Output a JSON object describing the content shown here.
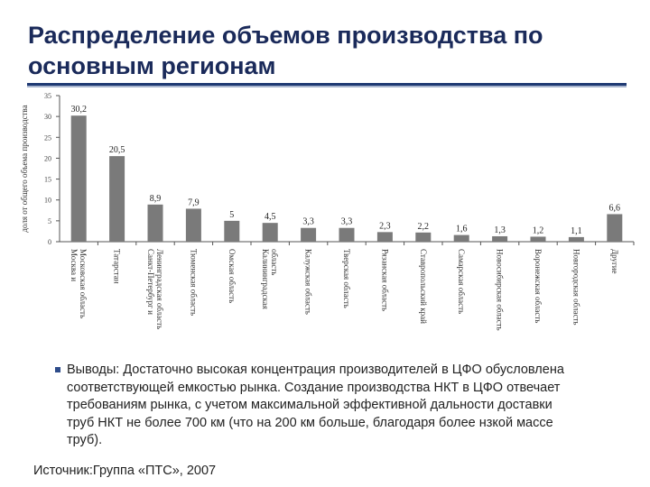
{
  "title": "Распределение объемов производства по основным регионам",
  "chart_data": {
    "type": "bar",
    "ylabel": "доля от общего объема производства",
    "ylim": [
      0,
      35
    ],
    "yticks": [
      0,
      5,
      10,
      15,
      20,
      25,
      30,
      35
    ],
    "categories": [
      "Москва и Московская область",
      "Татарстан",
      "Санкт-Петербург и Ленинградская область",
      "Тюменская область",
      "Омская область",
      "Калининградская область",
      "Калужская область",
      "Тверская область",
      "Рязанская область",
      "Ставропольский край",
      "Самарская область",
      "Новосибирская область",
      "Воронежская область",
      "Новгородская область",
      "Другие"
    ],
    "data_labels": [
      "30,2",
      "20,5",
      "8,9",
      "7,9",
      "5",
      "4,5",
      "3,3",
      "3,3",
      "2,3",
      "2,2",
      "1,6",
      "1,3",
      "1,2",
      "1,1",
      "6,6"
    ],
    "values": [
      30.2,
      20.5,
      8.9,
      7.9,
      5,
      4.5,
      3.3,
      3.3,
      2.3,
      2.2,
      1.6,
      1.3,
      1.2,
      1.1,
      6.6
    ],
    "bar_color": "#7a7a7a",
    "grid": false,
    "legend": "none"
  },
  "conclusion": "Выводы: Достаточно высокая концентрация производителей в ЦФО обусловлена соответствующей емкостью рынка. Создание производства НКТ в ЦФО отвечает требованиям рынка, с учетом максимальной эффективной дальности доставки труб НКТ не более 700 км (что на 200 км больше, благодаря более нзкой массе труб).",
  "source": "Источник:Группа «ПТС», 2007"
}
